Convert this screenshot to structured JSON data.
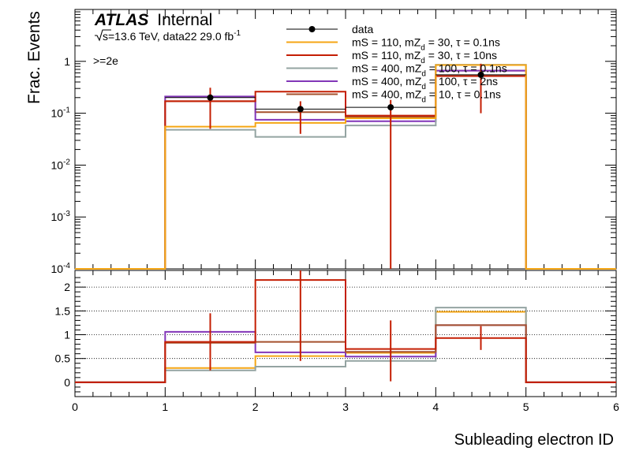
{
  "chart_data": {
    "type": "step",
    "x": [
      0,
      1,
      2,
      3,
      4,
      5,
      6
    ],
    "xlabel": "Subleading electron ID",
    "xlim": [
      0,
      6
    ],
    "xticks": [
      "0",
      "1",
      "2",
      "3",
      "4",
      "5",
      "6"
    ],
    "top_panel": {
      "ylabel": "Frac. Events",
      "yscale": "log",
      "ylim": [
        0.0001,
        10
      ],
      "yticks": [
        {
          "base": "10",
          "exp": "-4"
        },
        {
          "base": "10",
          "exp": "-3"
        },
        {
          "base": "10",
          "exp": "-2"
        },
        {
          "base": "10",
          "exp": "-1"
        },
        {
          "base": "1",
          "exp": ""
        }
      ],
      "series": [
        {
          "name": "data",
          "color": "#000000",
          "style": "points",
          "values": [
            0,
            0.2,
            0.12,
            0.13,
            0.55,
            0
          ],
          "err_low": [
            0,
            0.15,
            0.08,
            0.1299,
            0.45,
            0
          ],
          "err_high": [
            0,
            0.11,
            0.05,
            0.05,
            0.35,
            0
          ]
        },
        {
          "name": "mS = 110, mZ_d = 30, τ = 0.1ns",
          "color": "#f5a614",
          "values": [
            0,
            0.055,
            0.065,
            0.08,
            0.85,
            0
          ]
        },
        {
          "name": "mS = 110, mZ_d = 30, τ = 10ns",
          "color": "#c41e03",
          "values": [
            0,
            0.17,
            0.26,
            0.09,
            0.52,
            0
          ]
        },
        {
          "name": "mS = 400, mZ_d = 100, τ = 0.1ns",
          "color": "#94a4a2",
          "values": [
            0,
            0.048,
            0.035,
            0.058,
            0.86,
            0
          ]
        },
        {
          "name": "mS = 400, mZ_d = 100, τ = 2ns",
          "color": "#8236b8",
          "values": [
            0,
            0.21,
            0.075,
            0.07,
            0.66,
            0
          ]
        },
        {
          "name": "mS = 400, mZ_d = 10, τ = 0.1ns",
          "color": "#a5512d",
          "values": [
            0,
            0.17,
            0.105,
            0.085,
            0.66,
            0
          ]
        }
      ]
    },
    "ratio_panel": {
      "ylim": [
        -0.3,
        2.35
      ],
      "yticks": [
        "0",
        "0.5",
        "1",
        "1.5",
        "2"
      ],
      "gridlines": [
        0.5,
        1,
        1.5,
        2
      ],
      "series": [
        {
          "color": "#f5a614",
          "values": [
            0,
            0.3,
            0.55,
            0.62,
            1.48,
            0
          ]
        },
        {
          "color": "#94a4a2",
          "values": [
            0,
            0.25,
            0.33,
            0.45,
            1.57,
            0
          ]
        },
        {
          "color": "#8236b8",
          "values": [
            0,
            1.06,
            0.63,
            0.54,
            1.2,
            0
          ]
        },
        {
          "color": "#a5512d",
          "values": [
            0,
            0.83,
            0.85,
            0.64,
            1.2,
            0
          ]
        },
        {
          "color": "#c41e03",
          "values": [
            0,
            0.85,
            2.15,
            0.7,
            0.93,
            0
          ],
          "err_low": [
            0,
            0.6,
            1.7,
            0.68,
            0.25,
            0
          ],
          "err_high": [
            0,
            0.6,
            0.6,
            0.6,
            0.25,
            0
          ]
        }
      ]
    }
  },
  "annotations": {
    "experiment": "ATLAS",
    "status": "Internal",
    "energy_sqrt": "s",
    "energy_text": "=13.6 TeV, data22 29.0 fb",
    "lumi_exp": "-1",
    "selection": ">=2e"
  }
}
